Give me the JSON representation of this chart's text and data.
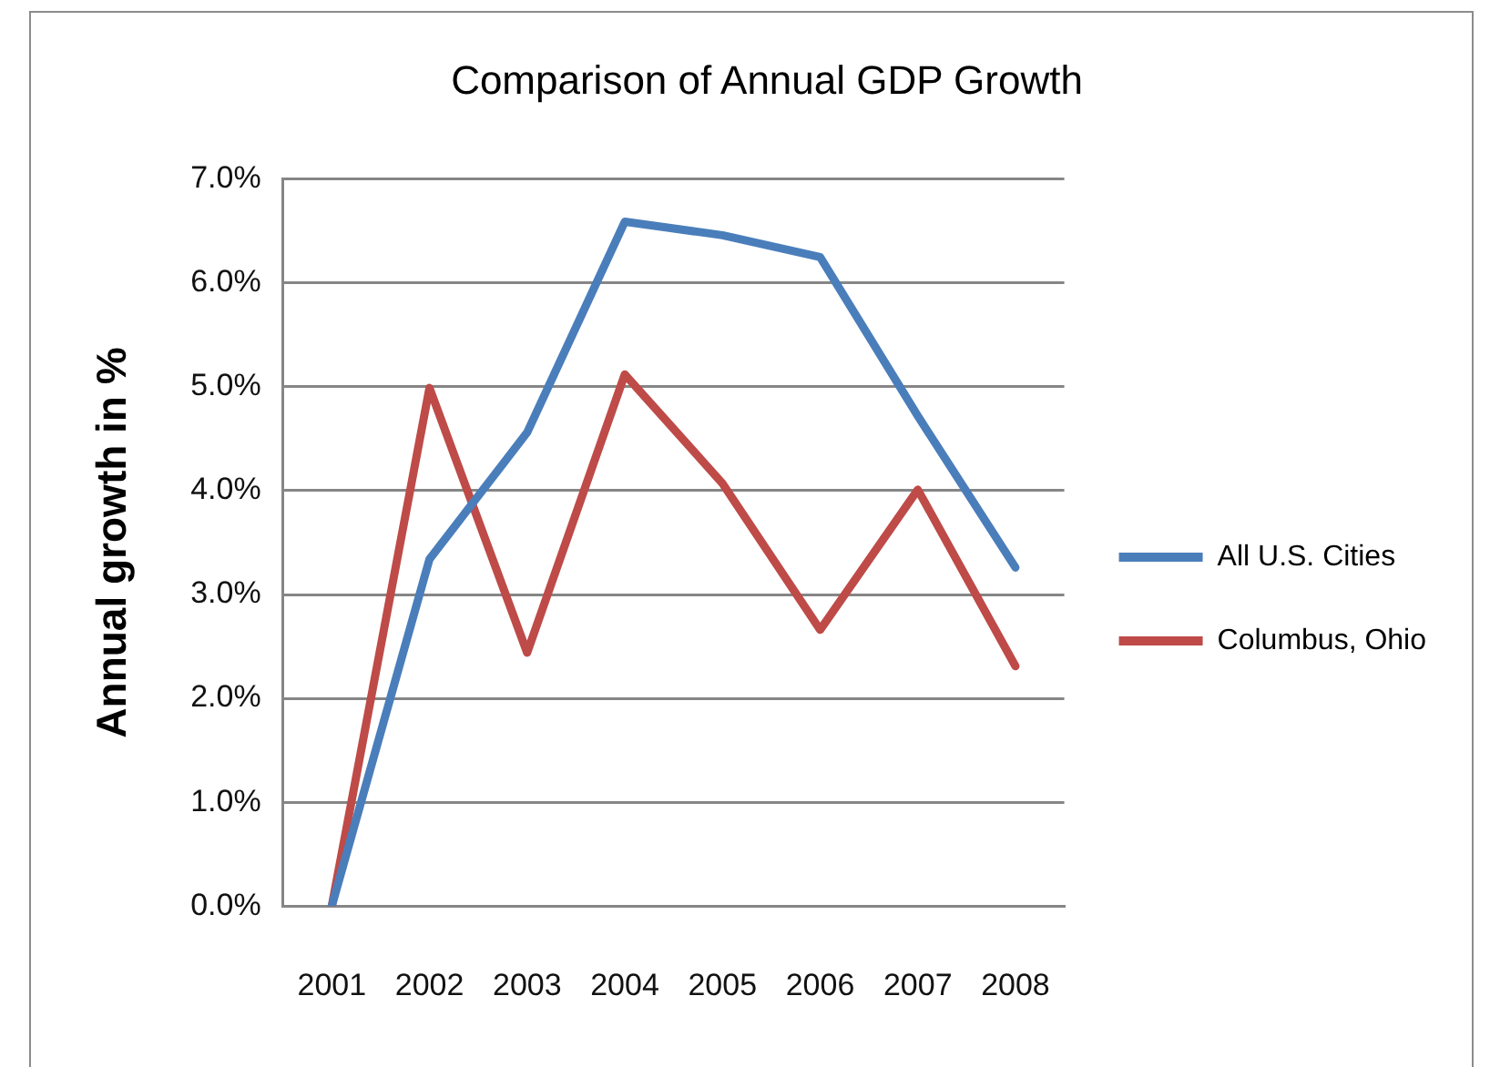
{
  "chart_data": {
    "type": "line",
    "title": "Comparison of Annual GDP Growth",
    "ylabel": "Annual growth in %",
    "categories": [
      "2001",
      "2002",
      "2003",
      "2004",
      "2005",
      "2006",
      "2007",
      "2008"
    ],
    "series": [
      {
        "name": "All U.S. Cities",
        "color": "#4a7ebb",
        "values": [
          0,
          3.34,
          4.56,
          6.59,
          6.46,
          6.25,
          4.72,
          3.26
        ]
      },
      {
        "name": "Columbus, Ohio",
        "color": "#be4b48",
        "values": [
          0,
          4.99,
          2.44,
          5.12,
          4.07,
          2.66,
          4.01,
          2.31
        ]
      }
    ],
    "ylim": [
      0,
      7
    ],
    "yticks": [
      {
        "value": 0,
        "label": "0.0%"
      },
      {
        "value": 1,
        "label": "1.0%"
      },
      {
        "value": 2,
        "label": "2.0%"
      },
      {
        "value": 3,
        "label": "3.0%"
      },
      {
        "value": 4,
        "label": "4.0%"
      },
      {
        "value": 5,
        "label": "5.0%"
      },
      {
        "value": 6,
        "label": "6.0%"
      },
      {
        "value": 7,
        "label": "7.0%"
      }
    ],
    "grid": "y",
    "legend": "right"
  }
}
